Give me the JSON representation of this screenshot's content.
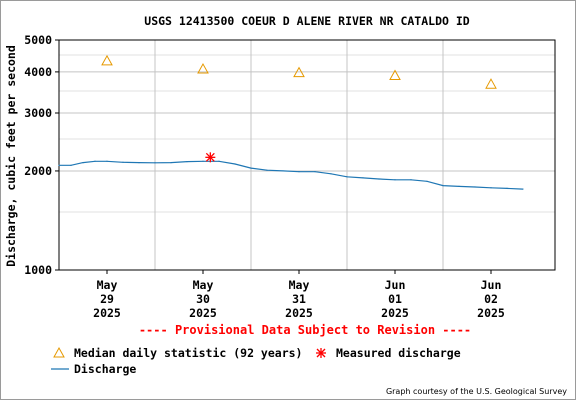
{
  "chart_data": {
    "type": "line",
    "title": "USGS 12413500 COEUR D ALENE RIVER NR CATALDO ID",
    "ylabel": "Discharge, cubic feet per second",
    "xlabel": "",
    "y_scale": "log",
    "ylim": [
      1000,
      5000
    ],
    "xlim": [
      "2025-05-28 12:00",
      "2025-06-02 16:00"
    ],
    "y_ticks": [
      1000,
      2000,
      3000,
      4000,
      5000
    ],
    "y_tick_labels": [
      "1000",
      "2000",
      "3000",
      "4000",
      "5000"
    ],
    "x_ticks": [
      {
        "month": "May",
        "day": "29",
        "year": "2025",
        "x": "2025-05-29 00:00"
      },
      {
        "month": "May",
        "day": "30",
        "year": "2025",
        "x": "2025-05-30 00:00"
      },
      {
        "month": "May",
        "day": "31",
        "year": "2025",
        "x": "2025-05-31 00:00"
      },
      {
        "month": "Jun",
        "day": "01",
        "year": "2025",
        "x": "2025-06-01 00:00"
      },
      {
        "month": "Jun",
        "day": "02",
        "year": "2025",
        "x": "2025-06-02 00:00"
      }
    ],
    "grid": true,
    "annotation": "---- Provisional Data Subject to Revision ----",
    "series": [
      {
        "name": "Discharge",
        "color": "#1f77b4",
        "points": [
          [
            "2025-05-28 12:00",
            2080
          ],
          [
            "2025-05-28 15:00",
            2080
          ],
          [
            "2025-05-28 18:00",
            2120
          ],
          [
            "2025-05-28 21:00",
            2140
          ],
          [
            "2025-05-29 00:00",
            2140
          ],
          [
            "2025-05-29 04:00",
            2125
          ],
          [
            "2025-05-29 08:00",
            2120
          ],
          [
            "2025-05-29 12:00",
            2118
          ],
          [
            "2025-05-29 16:00",
            2120
          ],
          [
            "2025-05-29 20:00",
            2135
          ],
          [
            "2025-05-30 00:00",
            2140
          ],
          [
            "2025-05-30 04:00",
            2140
          ],
          [
            "2025-05-30 08:00",
            2100
          ],
          [
            "2025-05-30 12:00",
            2040
          ],
          [
            "2025-05-30 16:00",
            2010
          ],
          [
            "2025-05-30 20:00",
            2000
          ],
          [
            "2025-05-31 00:00",
            1990
          ],
          [
            "2025-05-31 04:00",
            1990
          ],
          [
            "2025-05-31 08:00",
            1960
          ],
          [
            "2025-05-31 12:00",
            1920
          ],
          [
            "2025-05-31 16:00",
            1905
          ],
          [
            "2025-05-31 20:00",
            1890
          ],
          [
            "2025-06-01 00:00",
            1880
          ],
          [
            "2025-06-01 04:00",
            1880
          ],
          [
            "2025-06-01 08:00",
            1860
          ],
          [
            "2025-06-01 12:00",
            1805
          ],
          [
            "2025-06-01 16:00",
            1795
          ],
          [
            "2025-06-01 20:00",
            1788
          ],
          [
            "2025-06-02 00:00",
            1778
          ],
          [
            "2025-06-02 04:00",
            1770
          ],
          [
            "2025-06-02 08:00",
            1762
          ]
        ]
      },
      {
        "name": "Median daily statistic (92 years)",
        "color": "#e69900",
        "marker": "triangle",
        "points": [
          [
            "2025-05-29 00:00",
            4320
          ],
          [
            "2025-05-30 00:00",
            4080
          ],
          [
            "2025-05-31 00:00",
            3980
          ],
          [
            "2025-06-01 00:00",
            3900
          ],
          [
            "2025-06-02 00:00",
            3670
          ]
        ]
      },
      {
        "name": "Measured discharge",
        "color": "#ff0000",
        "marker": "star",
        "points": [
          [
            "2025-05-30 01:50",
            2200
          ]
        ]
      }
    ],
    "legend": {
      "placement": "bottom",
      "items": [
        {
          "label": "Median daily statistic (92 years)",
          "marker": "triangle",
          "color": "#e69900"
        },
        {
          "label": "Measured discharge",
          "marker": "star",
          "color": "#ff0000"
        },
        {
          "label": "Discharge",
          "marker": "line",
          "color": "#1f77b4"
        }
      ]
    },
    "credit": "Graph courtesy of the U.S. Geological Survey"
  }
}
